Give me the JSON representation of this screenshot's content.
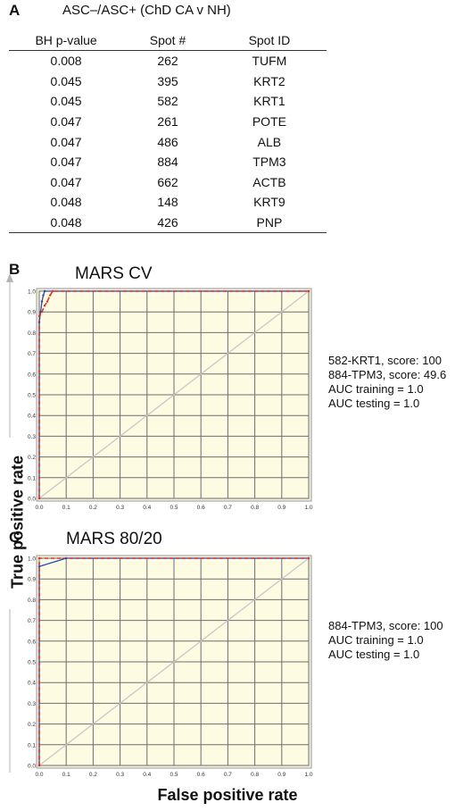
{
  "panel_a": {
    "letter": "A",
    "title": "ASC–/ASC+ (ChD CA v NH)",
    "columns": [
      "BH p-value",
      "Spot #",
      "Spot ID"
    ],
    "rows": [
      [
        "0.008",
        "262",
        "TUFM"
      ],
      [
        "0.045",
        "395",
        "KRT2"
      ],
      [
        "0.045",
        "582",
        "KRT1"
      ],
      [
        "0.047",
        "261",
        "POTE"
      ],
      [
        "0.047",
        "486",
        "ALB"
      ],
      [
        "0.047",
        "884",
        "TPM3"
      ],
      [
        "0.047",
        "662",
        "ACTB"
      ],
      [
        "0.048",
        "148",
        "KRT9"
      ],
      [
        "0.048",
        "426",
        "PNP"
      ]
    ]
  },
  "panel_b": {
    "letter": "B",
    "title": "MARS CV",
    "annotations": [
      "582-KRT1, score: 100",
      "884-TPM3, score: 49.6",
      "AUC training = 1.0",
      "AUC testing = 1.0"
    ]
  },
  "panel_c": {
    "letter": "C",
    "title": "MARS 80/20",
    "annotations": [
      "884-TPM3, score: 100",
      "AUC training = 1.0",
      "AUC testing = 1.0"
    ]
  },
  "axes": {
    "ylabel": "True positive rate",
    "xlabel": "False positive rate"
  },
  "colors": {
    "plot_bg": "#fdfbe2",
    "grid": "#6e6e6e",
    "diagonal": "#c8c8c8",
    "training_curve": "#2b46b8",
    "testing_curve": "#e0302a",
    "axis_arrow": "#b4b4b4"
  },
  "chart_data": [
    {
      "type": "line",
      "title": "MARS CV",
      "xlim": [
        0,
        1
      ],
      "ylim": [
        0,
        1
      ],
      "x_ticks": [
        "0.0",
        "0.1",
        "0.2",
        "0.3",
        "0.4",
        "0.5",
        "0.6",
        "0.7",
        "0.8",
        "0.9",
        "1.0"
      ],
      "y_ticks": [
        "0.0",
        "0.1",
        "0.2",
        "0.3",
        "0.4",
        "0.5",
        "0.6",
        "0.7",
        "0.8",
        "0.9",
        "1.0"
      ],
      "grid": true,
      "series": [
        {
          "style": "solid",
          "color": "#2b46b8",
          "x": [
            0,
            0,
            0.005,
            0.01,
            0.015,
            0.02,
            1.0
          ],
          "y": [
            0,
            0.85,
            0.9,
            0.95,
            0.98,
            1.0,
            1.0
          ]
        },
        {
          "style": "dashed",
          "color": "#e0302a",
          "x": [
            0,
            0,
            0.01,
            0.02,
            0.03,
            0.04,
            0.05,
            1.0
          ],
          "y": [
            0,
            0.88,
            0.9,
            0.93,
            0.95,
            0.98,
            1.0,
            1.0
          ]
        },
        {
          "style": "solid",
          "color": "#c8c8c8",
          "x": [
            0,
            1
          ],
          "y": [
            0,
            1
          ]
        }
      ]
    },
    {
      "type": "line",
      "title": "MARS 80/20",
      "xlim": [
        0,
        1
      ],
      "ylim": [
        0,
        1
      ],
      "x_ticks": [
        "0.0",
        "0.1",
        "0.2",
        "0.3",
        "0.4",
        "0.5",
        "0.6",
        "0.7",
        "0.8",
        "0.9",
        "1.0"
      ],
      "y_ticks": [
        "0.0",
        "0.1",
        "0.2",
        "0.3",
        "0.4",
        "0.5",
        "0.6",
        "0.7",
        "0.8",
        "0.9",
        "1.0"
      ],
      "grid": true,
      "series": [
        {
          "style": "solid",
          "color": "#2b46b8",
          "x": [
            0,
            0,
            0.1,
            1.0
          ],
          "y": [
            0,
            0.96,
            1.0,
            1.0
          ]
        },
        {
          "style": "dashed",
          "color": "#e0302a",
          "x": [
            0,
            0,
            1.0
          ],
          "y": [
            0,
            1.0,
            1.0
          ]
        },
        {
          "style": "solid",
          "color": "#c8c8c8",
          "x": [
            0,
            1
          ],
          "y": [
            0,
            1
          ]
        }
      ]
    }
  ]
}
